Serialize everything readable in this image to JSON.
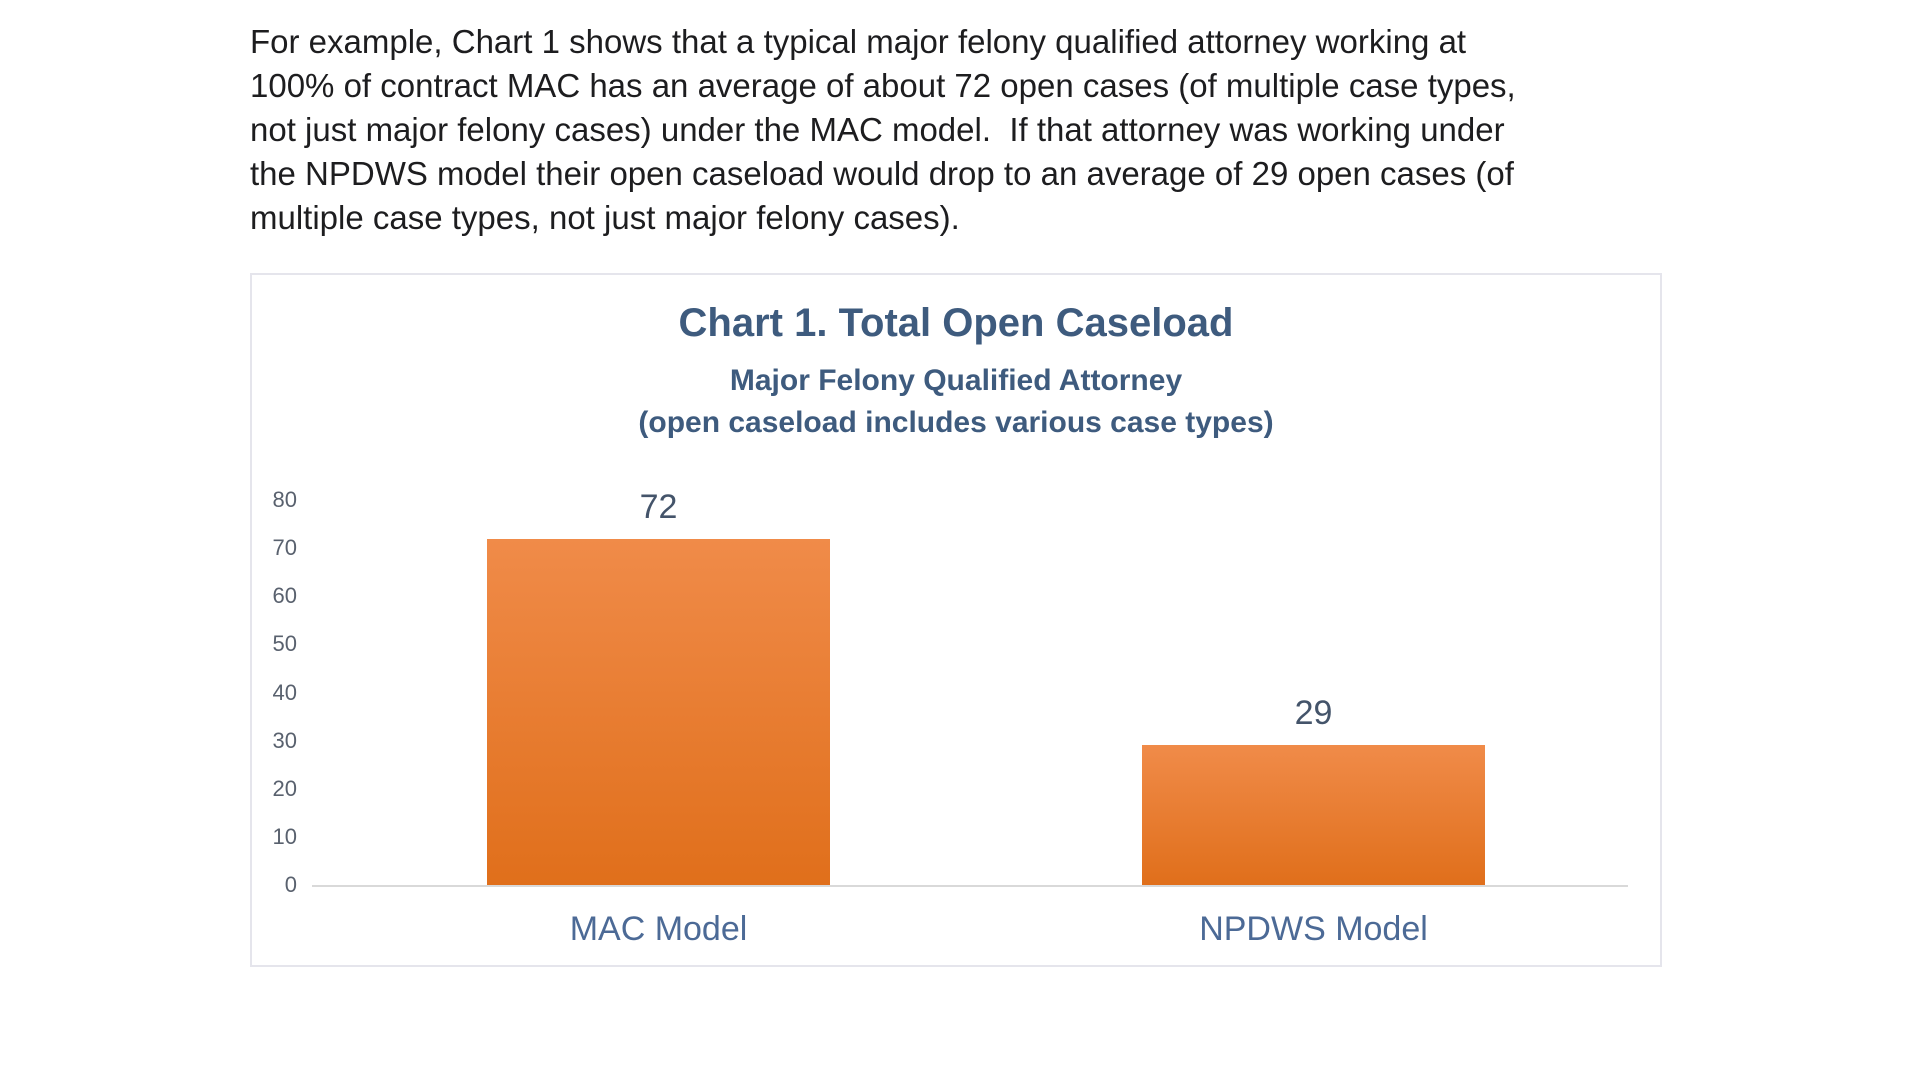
{
  "paragraph": {
    "lines": [
      "For example, Chart 1 shows that a typical major felony qualified attorney working at",
      "100% of contract MAC has an average of about 72 open cases (of multiple case types,",
      "not just major felony cases) under the MAC model.  If that attorney was working under",
      "the NPDWS model their open caseload would drop to an average of 29 open cases (of",
      "multiple case types, not just major felony cases)."
    ]
  },
  "chart_data": {
    "type": "bar",
    "title": "Chart 1. Total Open Caseload",
    "subtitle": "Major Felony Qualified Attorney",
    "subtitle2": "(open caseload includes various case types)",
    "categories": [
      "MAC Model",
      "NPDWS Model"
    ],
    "values": [
      72,
      29
    ],
    "value_labels": [
      "72",
      "29"
    ],
    "xlabel": "",
    "ylabel": "",
    "ylim": [
      0,
      80
    ],
    "yticks": [
      0,
      10,
      20,
      30,
      40,
      50,
      60,
      70,
      80
    ],
    "grid": false,
    "legend": false,
    "colors": {
      "bar_gradient_top": "#F08B49",
      "bar_gradient_bottom": "#E06F1B",
      "title": "#3E5B7E",
      "subtitle": "#3E5B7E",
      "value_label": "#44546A",
      "category_label": "#4C6A96",
      "tick_label": "#59616E",
      "axis_line": "#D9D9D9",
      "paragraph_text": "#1D1D1F",
      "chart_border": "#E5E5EC"
    }
  }
}
